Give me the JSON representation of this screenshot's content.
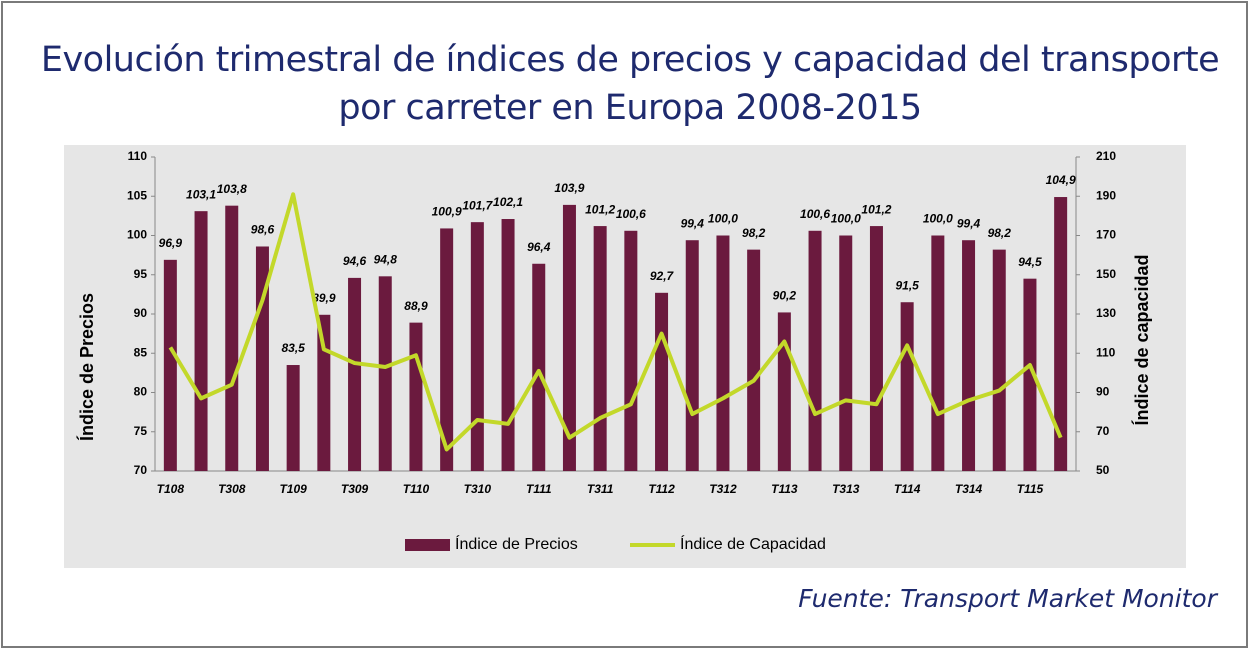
{
  "chart_data": {
    "type": "bar-line",
    "title": "Evolución trimestral de índices de precios y capacidad del transporte por carreter en Europa 2008-2015",
    "source": "Fuente: Transport Market Monitor",
    "ylabel": "Índice de Precios",
    "y2label": "Índice de capacidad",
    "categories": [
      "T108",
      null,
      "T308",
      null,
      "T109",
      null,
      "T309",
      null,
      "T110",
      null,
      "T310",
      null,
      "T111",
      null,
      "T311",
      null,
      "T112",
      null,
      "T312",
      null,
      "T113",
      null,
      "T313",
      null,
      "T114",
      null,
      "T314",
      null,
      "T115",
      null
    ],
    "series": [
      {
        "name": "Índice de Precios",
        "type": "bar",
        "color": "#6b1a3e",
        "values": [
          96.9,
          103.1,
          103.8,
          98.6,
          83.5,
          89.9,
          94.6,
          94.8,
          88.9,
          100.9,
          101.7,
          102.1,
          96.4,
          103.9,
          101.2,
          100.6,
          92.7,
          99.4,
          100.0,
          98.2,
          90.2,
          100.6,
          100.0,
          101.2,
          91.5,
          100.0,
          99.4,
          98.2,
          94.5,
          104.9
        ],
        "value_labels": [
          "96,9",
          "103,1",
          "103,8",
          "98,6",
          "83,5",
          "89,9",
          "94,6",
          "94,8",
          "88,9",
          "100,9",
          "101,7",
          "102,1",
          "96,4",
          "103,9",
          "101,2",
          "100,6",
          "92,7",
          "99,4",
          "100,0",
          "98,2",
          "90,2",
          "100,6",
          "100,0",
          "101,2",
          "91,5",
          "100,0",
          "99,4",
          "98,2",
          "94,5",
          "104,9"
        ]
      },
      {
        "name": "Índice de Capacidad",
        "type": "line",
        "axis": "y2",
        "color": "#c3d82a",
        "values": [
          113,
          87,
          94,
          137,
          191,
          112,
          105,
          103,
          109,
          61,
          76,
          74,
          101,
          67,
          77,
          84,
          120,
          79,
          87,
          96,
          116,
          79,
          86,
          84,
          114,
          79,
          86,
          91,
          104,
          67
        ]
      }
    ],
    "ylim": [
      70,
      110
    ],
    "yticks": [
      70,
      75,
      80,
      85,
      90,
      95,
      100,
      105,
      110
    ],
    "y2lim": [
      50,
      210
    ],
    "y2ticks": [
      50,
      70,
      90,
      110,
      130,
      150,
      170,
      190,
      210
    ],
    "legend": "bottom"
  }
}
